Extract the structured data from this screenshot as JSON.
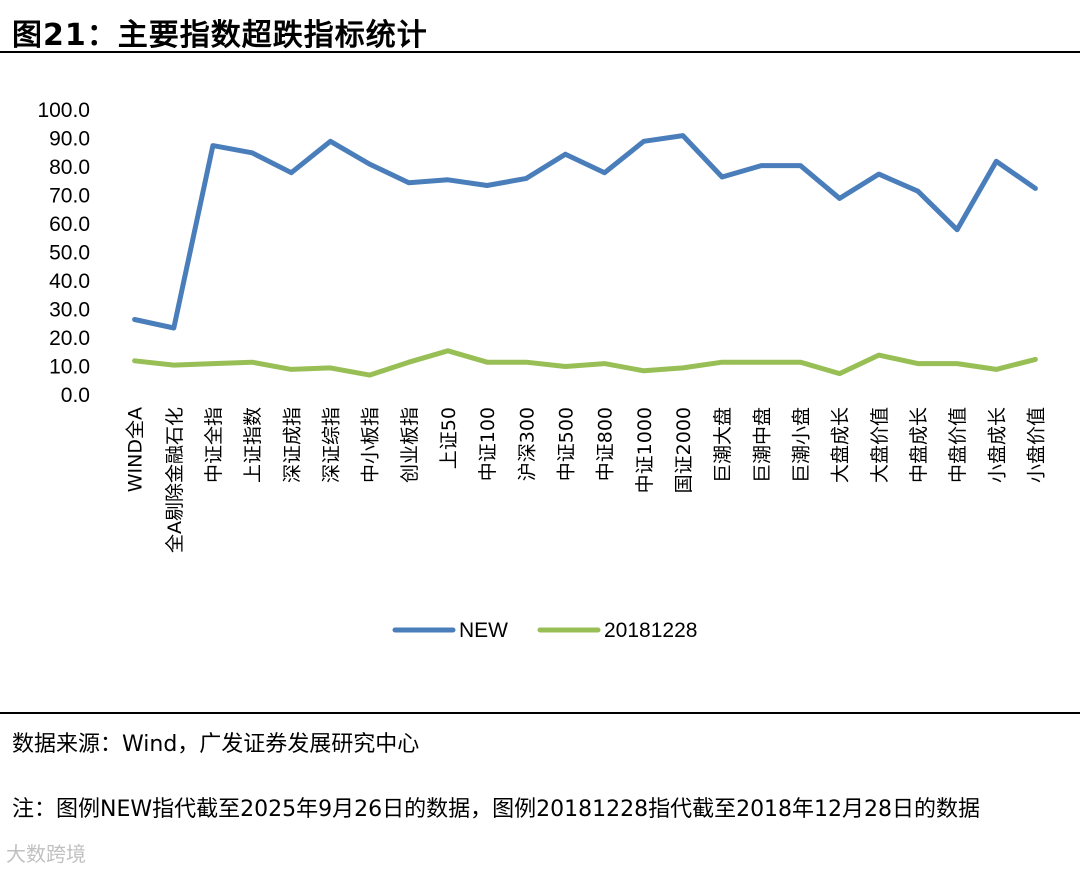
{
  "header": {
    "title": "图21：主要指数超跌指标统计"
  },
  "footer": {
    "source": "数据来源：Wind，广发证券发展研究中心",
    "note": "注：图例NEW指代截至2025年9月26日的数据，图例20181228指代截至2018年12月28日的数据"
  },
  "watermark": "大数跨境",
  "chart_data": {
    "type": "line",
    "categories": [
      "WIND全A",
      "全A剔除金融石化",
      "中证全指",
      "上证指数",
      "深证成指",
      "深证综指",
      "中小板指",
      "创业板指",
      "上证50",
      "中证100",
      "沪深300",
      "中证500",
      "中证800",
      "中证1000",
      "国证2000",
      "巨潮大盘",
      "巨潮中盘",
      "巨潮小盘",
      "大盘成长",
      "大盘价值",
      "中盘成长",
      "中盘价值",
      "小盘成长",
      "小盘价值"
    ],
    "series": [
      {
        "name": "NEW",
        "color": "#4A7EBB",
        "values": [
          26.5,
          23.5,
          87.5,
          85.0,
          78.0,
          89.0,
          81.0,
          74.5,
          75.5,
          73.5,
          76.0,
          84.5,
          78.0,
          89.0,
          91.0,
          76.5,
          80.5,
          80.5,
          69.0,
          77.5,
          71.5,
          58.0,
          82.0,
          72.5
        ]
      },
      {
        "name": "20181228",
        "color": "#98BF56",
        "values": [
          12.0,
          10.5,
          11.0,
          11.5,
          9.0,
          9.5,
          7.0,
          11.5,
          15.5,
          11.5,
          11.5,
          10.0,
          11.0,
          8.5,
          9.5,
          11.5,
          11.5,
          11.5,
          7.5,
          14.0,
          11.0,
          11.0,
          9.0,
          12.5
        ]
      }
    ],
    "yticks": [
      "100.0",
      "90.0",
      "80.0",
      "70.0",
      "60.0",
      "50.0",
      "40.0",
      "30.0",
      "20.0",
      "10.0",
      "0.0"
    ],
    "ylim": [
      0,
      100
    ],
    "grid": false,
    "legend": "bottom"
  }
}
